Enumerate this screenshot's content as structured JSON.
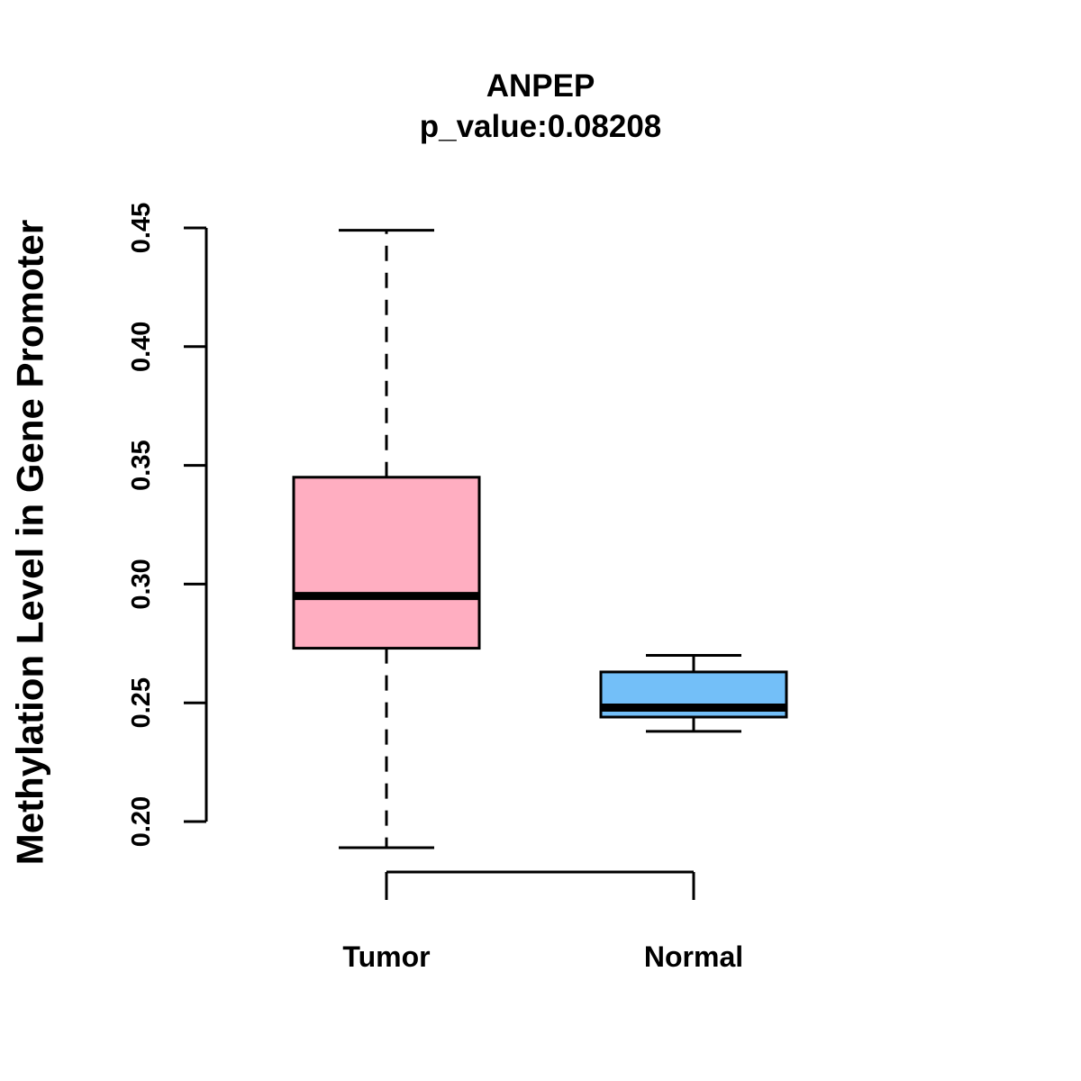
{
  "page": {
    "background": "#FFFFFF",
    "text_color": "#000000"
  },
  "chart_data": {
    "type": "boxplot",
    "title": "ANPEP",
    "subtitle": "p_value:0.08208",
    "ylabel": "Methylation Level in Gene Promoter",
    "xlabel": "",
    "grid": false,
    "legend": null,
    "ylim": [
      0.185,
      0.455
    ],
    "yticks": [
      "0.20",
      "0.25",
      "0.30",
      "0.35",
      "0.40",
      "0.45"
    ],
    "ytick_values": [
      0.2,
      0.25,
      0.3,
      0.35,
      0.4,
      0.45
    ],
    "categories": [
      "Tumor",
      "Normal"
    ],
    "axis_color": "#000000",
    "whisker_style": "dashed",
    "series": [
      {
        "name": "Tumor",
        "fill": "#FFAEC1",
        "border": "#000000",
        "whisker_low": 0.189,
        "q1": 0.273,
        "median": 0.295,
        "q3": 0.345,
        "whisker_high": 0.449
      },
      {
        "name": "Normal",
        "fill": "#73BFF8",
        "border": "#000000",
        "whisker_low": 0.238,
        "q1": 0.244,
        "median": 0.248,
        "q3": 0.263,
        "whisker_high": 0.27
      }
    ]
  }
}
